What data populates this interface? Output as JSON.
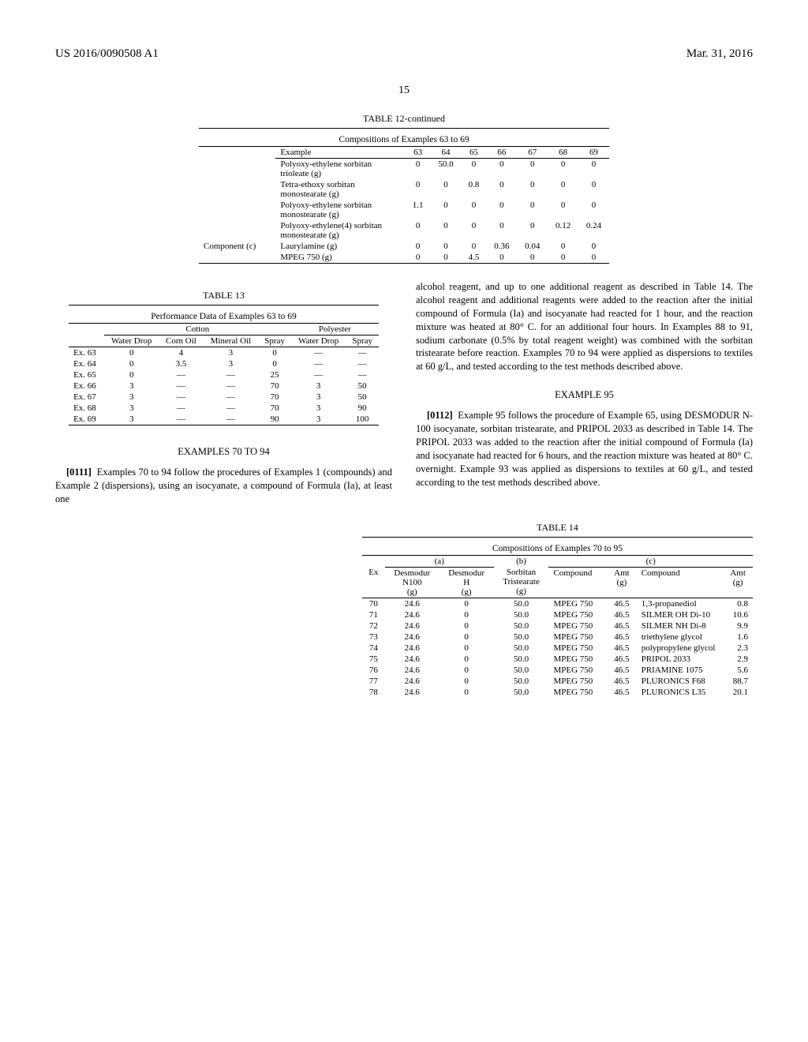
{
  "header": {
    "left": "US 2016/0090508 A1",
    "right": "Mar. 31, 2016"
  },
  "page_number": "15",
  "table12": {
    "title": "TABLE 12-continued",
    "subtitle": "Compositions of Examples 63 to 69",
    "col_head": "Example",
    "cols": [
      "63",
      "64",
      "65",
      "66",
      "67",
      "68",
      "69"
    ],
    "rows": [
      {
        "label": "Polyoxy-ethylene sorbitan trioleate (g)",
        "vals": [
          "0",
          "50.0",
          "0",
          "0",
          "0",
          "0",
          "0"
        ]
      },
      {
        "label": "Tetra-ethoxy sorbitan monostearate (g)",
        "vals": [
          "0",
          "0",
          "0.8",
          "0",
          "0",
          "0",
          "0"
        ]
      },
      {
        "label": "Polyoxy-ethylene sorbitan monostearate (g)",
        "vals": [
          "1.1",
          "0",
          "0",
          "0",
          "0",
          "0",
          "0"
        ]
      },
      {
        "label": "Polyoxy-ethylene(4) sorbitan monostearate (g)",
        "vals": [
          "0",
          "0",
          "0",
          "0",
          "0",
          "0.12",
          "0.24"
        ]
      }
    ],
    "comp_c": "Component (c)",
    "comp_rows": [
      {
        "label": "Laurylamine (g)",
        "vals": [
          "0",
          "0",
          "0",
          "0.36",
          "0.04",
          "0",
          "0"
        ]
      },
      {
        "label": "MPEG 750 (g)",
        "vals": [
          "0",
          "0",
          "4.5",
          "0",
          "0",
          "0",
          "0"
        ]
      }
    ]
  },
  "table13": {
    "title": "TABLE 13",
    "subtitle": "Performance Data of Examples 63 to 69",
    "group1": "Cotton",
    "group2": "Polyester",
    "heads": [
      "Water Drop",
      "Corn Oil",
      "Mineral Oil",
      "Spray",
      "Water Drop",
      "Spray"
    ],
    "rows": [
      {
        "ex": "Ex. 63",
        "v": [
          "0",
          "4",
          "3",
          "0",
          "—",
          "—"
        ]
      },
      {
        "ex": "Ex. 64",
        "v": [
          "0",
          "3.5",
          "3",
          "0",
          "—",
          "—"
        ]
      },
      {
        "ex": "Ex. 65",
        "v": [
          "0",
          "—",
          "—",
          "25",
          "—",
          "—"
        ]
      },
      {
        "ex": "Ex. 66",
        "v": [
          "3",
          "—",
          "—",
          "70",
          "3",
          "50"
        ]
      },
      {
        "ex": "Ex. 67",
        "v": [
          "3",
          "—",
          "—",
          "70",
          "3",
          "50"
        ]
      },
      {
        "ex": "Ex. 68",
        "v": [
          "3",
          "—",
          "—",
          "70",
          "3",
          "90"
        ]
      },
      {
        "ex": "Ex. 69",
        "v": [
          "3",
          "—",
          "—",
          "90",
          "3",
          "100"
        ]
      }
    ]
  },
  "examples_70_94_title": "EXAMPLES 70 TO 94",
  "para_0111_num": "[0111]",
  "para_0111": "Examples 70 to 94 follow the procedures of Examples 1 (compounds) and Example 2 (dispersions), using an isocyanate, a compound of Formula (Ia), at least one",
  "right_top": "alcohol reagent, and up to one additional reagent as described in Table 14. The alcohol reagent and additional reagents were added to the reaction after the initial compound of Formula (Ia) and isocyanate had reacted for 1 hour, and the reaction mixture was heated at 80° C. for an additional four hours. In Examples 88 to 91, sodium carbonate (0.5% by total reagent weight) was combined with the sorbitan tristearate before reaction. Examples 70 to 94 were applied as dispersions to textiles at 60 g/L, and tested according to the test methods described above.",
  "example_95_title": "EXAMPLE 95",
  "para_0112_num": "[0112]",
  "para_0112": "Example 95 follows the procedure of Example 65, using DESMODUR N-100 isocyanate, sorbitan tristearate, and PRIPOL 2033 as described in Table 14. The PRIPOL 2033 was added to the reaction after the initial compound of Formula (Ia) and isocyanate had reacted for 6 hours, and the reaction mixture was heated at 80° C. overnight. Example 93 was applied as dispersions to textiles at 60 g/L, and tested according to the test methods described above.",
  "table14": {
    "title": "TABLE 14",
    "subtitle": "Compositions of Examples 70 to 95",
    "group_a": "(a)",
    "group_b": "(b)",
    "group_c": "(c)",
    "heads": [
      "Ex",
      "Desmodur N100 (g)",
      "Desmodur H (g)",
      "Sorbitan Tristearate (g)",
      "Compound",
      "Amt (g)",
      "Compound",
      "Amt (g)"
    ],
    "rows": [
      {
        "v": [
          "70",
          "24.6",
          "0",
          "50.0",
          "MPEG 750",
          "46.5",
          "1,3-propanediol",
          "0.8"
        ]
      },
      {
        "v": [
          "71",
          "24.6",
          "0",
          "50.0",
          "MPEG 750",
          "46.5",
          "SILMER OH Di-10",
          "10.6"
        ]
      },
      {
        "v": [
          "72",
          "24.6",
          "0",
          "50.0",
          "MPEG 750",
          "46.5",
          "SILMER NH Di-8",
          "9.9"
        ]
      },
      {
        "v": [
          "73",
          "24.6",
          "0",
          "50.0",
          "MPEG 750",
          "46.5",
          "triethylene glycol",
          "1.6"
        ]
      },
      {
        "v": [
          "74",
          "24.6",
          "0",
          "50.0",
          "MPEG 750",
          "46.5",
          "polypropylene glycol",
          "2.3"
        ]
      },
      {
        "v": [
          "75",
          "24.6",
          "0",
          "50.0",
          "MPEG 750",
          "46.5",
          "PRIPOL 2033",
          "2.9"
        ]
      },
      {
        "v": [
          "76",
          "24.6",
          "0",
          "50.0",
          "MPEG 750",
          "46.5",
          "PRIAMINE 1075",
          "5.6"
        ]
      },
      {
        "v": [
          "77",
          "24.6",
          "0",
          "50.0",
          "MPEG 750",
          "46.5",
          "PLURONICS F68",
          "88.7"
        ]
      },
      {
        "v": [
          "78",
          "24.6",
          "0",
          "50.0",
          "MPEG 750",
          "46.5",
          "PLURONICS L35",
          "20.1"
        ]
      }
    ]
  }
}
